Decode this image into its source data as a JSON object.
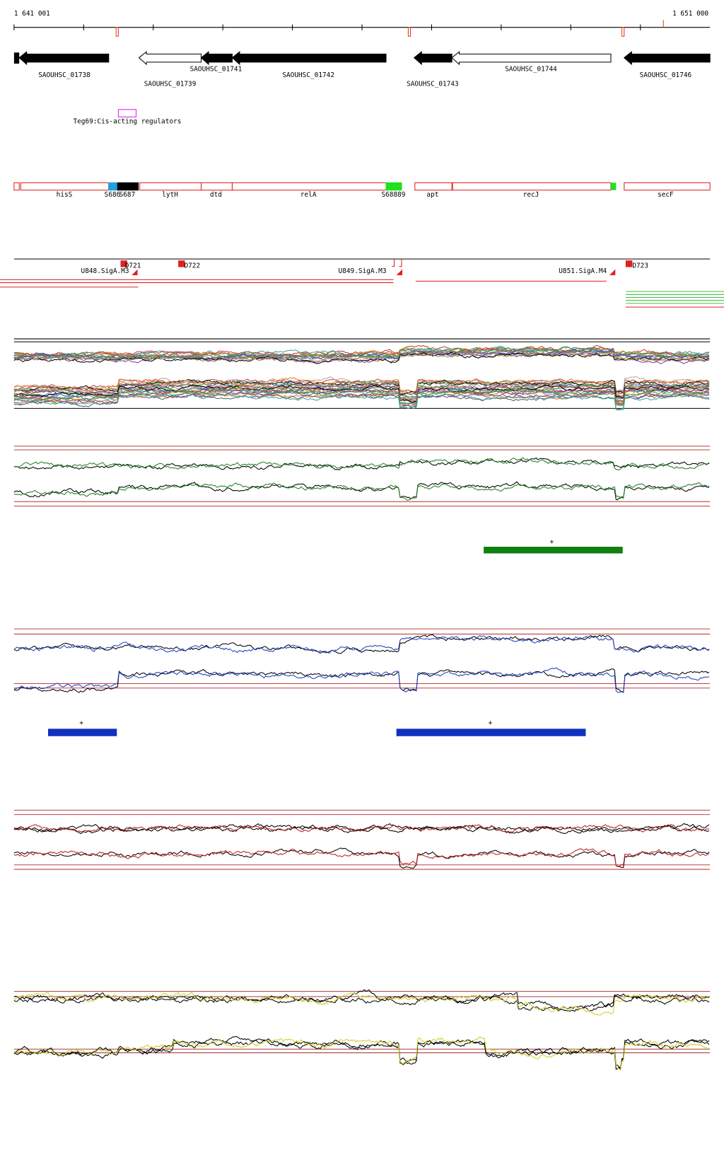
{
  "ruler": {
    "start": "1 641 001",
    "end": "1 651 000"
  },
  "genes": [
    "SAOUHSC_01738",
    "SAOUHSC_01739",
    "SAOUHSC_01741",
    "SAOUHSC_01742",
    "SAOUHSC_01743",
    "SAOUHSC_01744",
    "SAOUHSC_01746"
  ],
  "regulator": "Teg69:Cis-acting regulators",
  "features": [
    "hisS",
    "S686",
    "S687",
    "lytH",
    "dtd",
    "relA",
    "S68889",
    "apt",
    "recJ",
    "secF"
  ],
  "promoters": [
    "U848.SigA.M3",
    "D721",
    "D722",
    "U849.SigA.M3",
    "U851.SigA.M4",
    "D723"
  ],
  "segment_marks": [
    "+",
    "+",
    "+"
  ]
}
